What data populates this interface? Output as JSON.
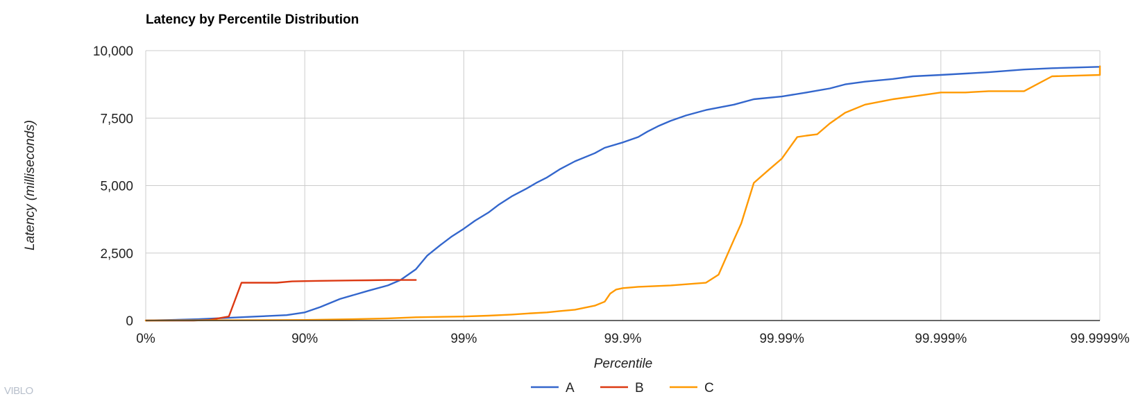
{
  "chart_data": {
    "type": "line",
    "title": "Latency by Percentile Distribution",
    "xlabel": "Percentile",
    "ylabel": "Latency (milliseconds)",
    "x_scale": "percentile-log",
    "x_ticks": [
      "0%",
      "90%",
      "99%",
      "99.9%",
      "99.99%",
      "99.999%",
      "99.9999%"
    ],
    "y_ticks": [
      "0",
      "2,500",
      "5,000",
      "7,500",
      "10,000"
    ],
    "ylim": [
      0,
      10000
    ],
    "grid": true,
    "legend_position": "bottom",
    "colors": {
      "A": "#3366cc",
      "B": "#dc3912",
      "C": "#ff9900"
    },
    "series": [
      {
        "name": "A",
        "points": [
          [
            "0%",
            0
          ],
          [
            "30%",
            20
          ],
          [
            "53%",
            50
          ],
          [
            "70%",
            100
          ],
          [
            "80%",
            150
          ],
          [
            "87%",
            200
          ],
          [
            "90%",
            300
          ],
          [
            "92%",
            500
          ],
          [
            "94%",
            800
          ],
          [
            "96%",
            1100
          ],
          [
            "97%",
            1300
          ],
          [
            "97.5%",
            1500
          ],
          [
            "98%",
            1900
          ],
          [
            "98.3%",
            2400
          ],
          [
            "98.6%",
            2800
          ],
          [
            "98.8%",
            3100
          ],
          [
            "99%",
            3400
          ],
          [
            "99.15%",
            3700
          ],
          [
            "99.3%",
            4000
          ],
          [
            "99.4%",
            4300
          ],
          [
            "99.5%",
            4600
          ],
          [
            "99.6%",
            4900
          ],
          [
            "99.65%",
            5100
          ],
          [
            "99.7%",
            5300
          ],
          [
            "99.75%",
            5600
          ],
          [
            "99.8%",
            5900
          ],
          [
            "99.85%",
            6200
          ],
          [
            "99.87%",
            6400
          ],
          [
            "99.9%",
            6600
          ],
          [
            "99.92%",
            6800
          ],
          [
            "99.93%",
            7000
          ],
          [
            "99.94%",
            7200
          ],
          [
            "99.95%",
            7400
          ],
          [
            "99.96%",
            7600
          ],
          [
            "99.97%",
            7800
          ],
          [
            "99.98%",
            8000
          ],
          [
            "99.985%",
            8200
          ],
          [
            "99.99%",
            8300
          ],
          [
            "99.993%",
            8450
          ],
          [
            "99.995%",
            8600
          ],
          [
            "99.996%",
            8750
          ],
          [
            "99.997%",
            8850
          ],
          [
            "99.998%",
            8950
          ],
          [
            "99.9985%",
            9050
          ],
          [
            "99.999%",
            9100
          ],
          [
            "99.9995%",
            9200
          ],
          [
            "99.9997%",
            9300
          ],
          [
            "99.9998%",
            9350
          ],
          [
            "99.9999%",
            9400
          ],
          [
            "99.99995%",
            9420
          ],
          [
            "99.99999%",
            9420
          ]
        ]
      },
      {
        "name": "B",
        "points": [
          [
            "0%",
            0
          ],
          [
            "50%",
            0
          ],
          [
            "60%",
            20
          ],
          [
            "70%",
            150
          ],
          [
            "75%",
            1400
          ],
          [
            "85%",
            1400
          ],
          [
            "88%",
            1450
          ],
          [
            "90%",
            1460
          ],
          [
            "92%",
            1470
          ],
          [
            "94%",
            1480
          ],
          [
            "96%",
            1490
          ],
          [
            "97%",
            1500
          ],
          [
            "98%",
            1500
          ]
        ]
      },
      {
        "name": "C",
        "points": [
          [
            "0%",
            0
          ],
          [
            "90%",
            20
          ],
          [
            "95%",
            50
          ],
          [
            "97%",
            80
          ],
          [
            "98%",
            120
          ],
          [
            "99%",
            150
          ],
          [
            "99.3%",
            180
          ],
          [
            "99.5%",
            220
          ],
          [
            "99.6%",
            260
          ],
          [
            "99.7%",
            300
          ],
          [
            "99.75%",
            350
          ],
          [
            "99.8%",
            400
          ],
          [
            "99.85%",
            550
          ],
          [
            "99.87%",
            700
          ],
          [
            "99.88%",
            1000
          ],
          [
            "99.89%",
            1150
          ],
          [
            "99.9%",
            1200
          ],
          [
            "99.92%",
            1250
          ],
          [
            "99.95%",
            1300
          ],
          [
            "99.97%",
            1400
          ],
          [
            "99.975%",
            1700
          ],
          [
            "99.98%",
            3000
          ],
          [
            "99.982%",
            3600
          ],
          [
            "99.985%",
            5100
          ],
          [
            "99.988%",
            5600
          ],
          [
            "99.99%",
            6000
          ],
          [
            "99.992%",
            6800
          ],
          [
            "99.993%",
            6850
          ],
          [
            "99.994%",
            6900
          ],
          [
            "99.995%",
            7300
          ],
          [
            "99.996%",
            7700
          ],
          [
            "99.997%",
            8000
          ],
          [
            "99.998%",
            8200
          ],
          [
            "99.9985%",
            8300
          ],
          [
            "99.999%",
            8450
          ],
          [
            "99.9993%",
            8450
          ],
          [
            "99.9995%",
            8500
          ],
          [
            "99.9997%",
            8500
          ],
          [
            "99.9998%",
            9050
          ],
          [
            "99.9999%",
            9100
          ],
          [
            "99.99993%",
            9200
          ],
          [
            "99.99995%",
            9400
          ],
          [
            "99.99997%",
            9420
          ],
          [
            "99.99998%",
            9420
          ]
        ]
      }
    ]
  },
  "watermark": "VIBLO"
}
